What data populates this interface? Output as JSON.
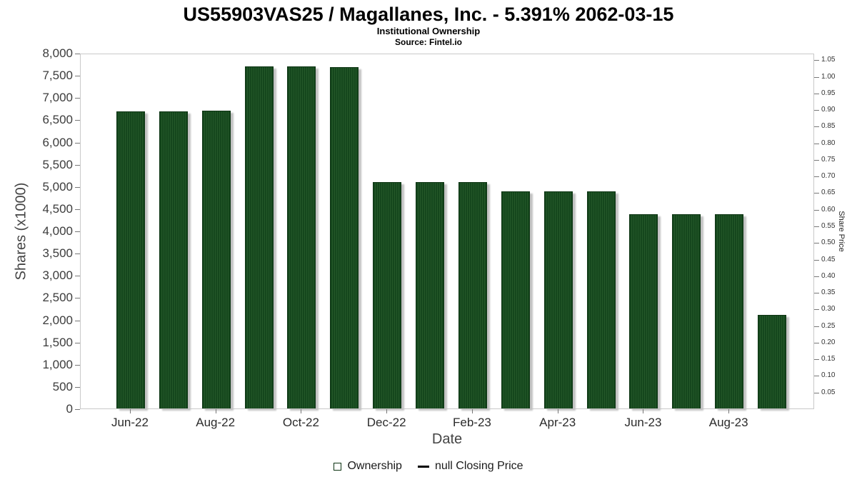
{
  "header": {
    "title": "US55903VAS25 / Magallanes, Inc. - 5.391% 2062-03-15",
    "subtitle": "Institutional Ownership",
    "source": "Source: Fintel.io"
  },
  "chart_data": {
    "type": "bar",
    "title": "US55903VAS25 / Magallanes, Inc. - 5.391% 2062-03-15",
    "subtitle": "Institutional Ownership",
    "source": "Source: Fintel.io",
    "xlabel": "Date",
    "ylabel_left": "Shares (x1000)",
    "ylabel_right": "Share Price",
    "categories": [
      "Jun-22",
      "Jul-22",
      "Aug-22",
      "Sep-22",
      "Oct-22",
      "Nov-22",
      "Dec-22",
      "Jan-23",
      "Feb-23",
      "Mar-23",
      "Apr-23",
      "May-23",
      "Jun-23",
      "Jul-23",
      "Aug-23",
      "Sep-23"
    ],
    "values": [
      6680,
      6680,
      6700,
      7700,
      7700,
      7680,
      5090,
      5090,
      5090,
      4880,
      4880,
      4880,
      4370,
      4370,
      4370,
      2100
    ],
    "x_tick_indices": [
      0,
      2,
      4,
      6,
      8,
      10,
      12,
      14
    ],
    "x_tick_labels": [
      "Jun-22",
      "Aug-22",
      "Oct-22",
      "Dec-22",
      "Feb-23",
      "Apr-23",
      "Jun-23",
      "Aug-23"
    ],
    "y_left": {
      "min": 0,
      "max": 8000,
      "step": 500,
      "tick_labels": [
        "8,000",
        "7,500",
        "7,000",
        "6,500",
        "6,000",
        "5,500",
        "5,000",
        "4,500",
        "4,000",
        "3,500",
        "3,000",
        "2,500",
        "2,000",
        "1,500",
        "1,000",
        "500",
        "0"
      ]
    },
    "y_right": {
      "min": 0,
      "max": 1.07,
      "step": 0.05,
      "tick_labels": [
        "1.05",
        "1.00",
        "0.95",
        "0.90",
        "0.85",
        "0.80",
        "0.75",
        "0.70",
        "0.65",
        "0.60",
        "0.55",
        "0.50",
        "0.45",
        "0.40",
        "0.35",
        "0.30",
        "0.25",
        "0.20",
        "0.15",
        "0.10",
        "0.05"
      ]
    },
    "bar_color": "#15471d",
    "grid": false,
    "legend_position": "bottom",
    "legend": [
      {
        "label": "Ownership",
        "swatch": "square",
        "color": "#15471d"
      },
      {
        "label": "null Closing Price",
        "swatch": "dash",
        "color": "#000000"
      }
    ]
  }
}
